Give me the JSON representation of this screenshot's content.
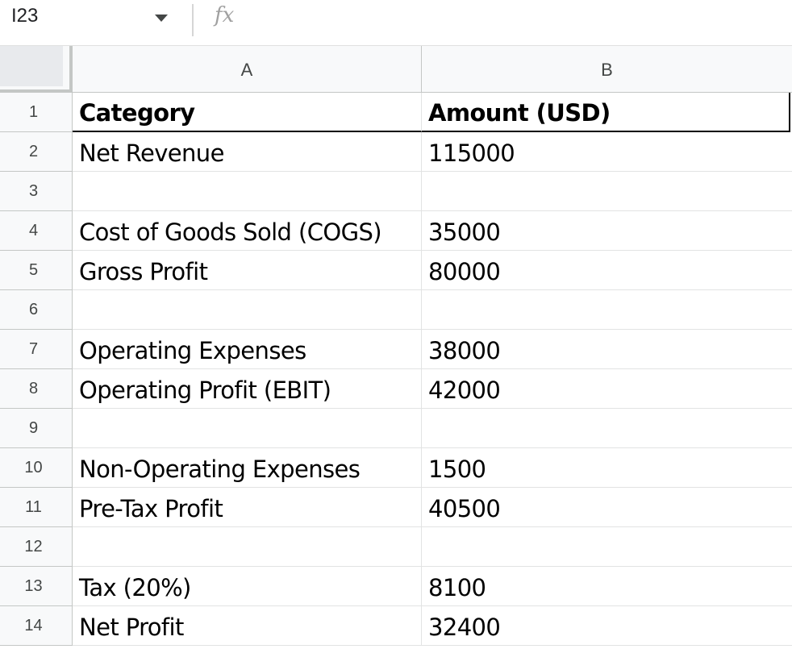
{
  "formula_bar": {
    "name_box": "I23",
    "fx_label": "fx",
    "formula_value": ""
  },
  "columns": [
    "A",
    "B"
  ],
  "rows": [
    {
      "num": "1",
      "a": "Category",
      "b": "Amount (USD)",
      "header": true
    },
    {
      "num": "2",
      "a": "Net Revenue",
      "b": "115000"
    },
    {
      "num": "3",
      "a": "",
      "b": ""
    },
    {
      "num": "4",
      "a": "Cost of Goods Sold (COGS)",
      "b": "35000"
    },
    {
      "num": "5",
      "a": "Gross Profit",
      "b": "80000"
    },
    {
      "num": "6",
      "a": "",
      "b": ""
    },
    {
      "num": "7",
      "a": "Operating Expenses",
      "b": "38000"
    },
    {
      "num": "8",
      "a": "Operating Profit (EBIT)",
      "b": "42000"
    },
    {
      "num": "9",
      "a": "",
      "b": ""
    },
    {
      "num": "10",
      "a": "Non-Operating Expenses",
      "b": "1500"
    },
    {
      "num": "11",
      "a": "Pre-Tax Profit",
      "b": "40500"
    },
    {
      "num": "12",
      "a": "",
      "b": ""
    },
    {
      "num": "13",
      "a": "Tax (20%)",
      "b": "8100"
    },
    {
      "num": "14",
      "a": "Net Profit",
      "b": "32400"
    }
  ],
  "icons": {
    "dropdown": "chevron-down-icon",
    "function": "fx-icon"
  }
}
